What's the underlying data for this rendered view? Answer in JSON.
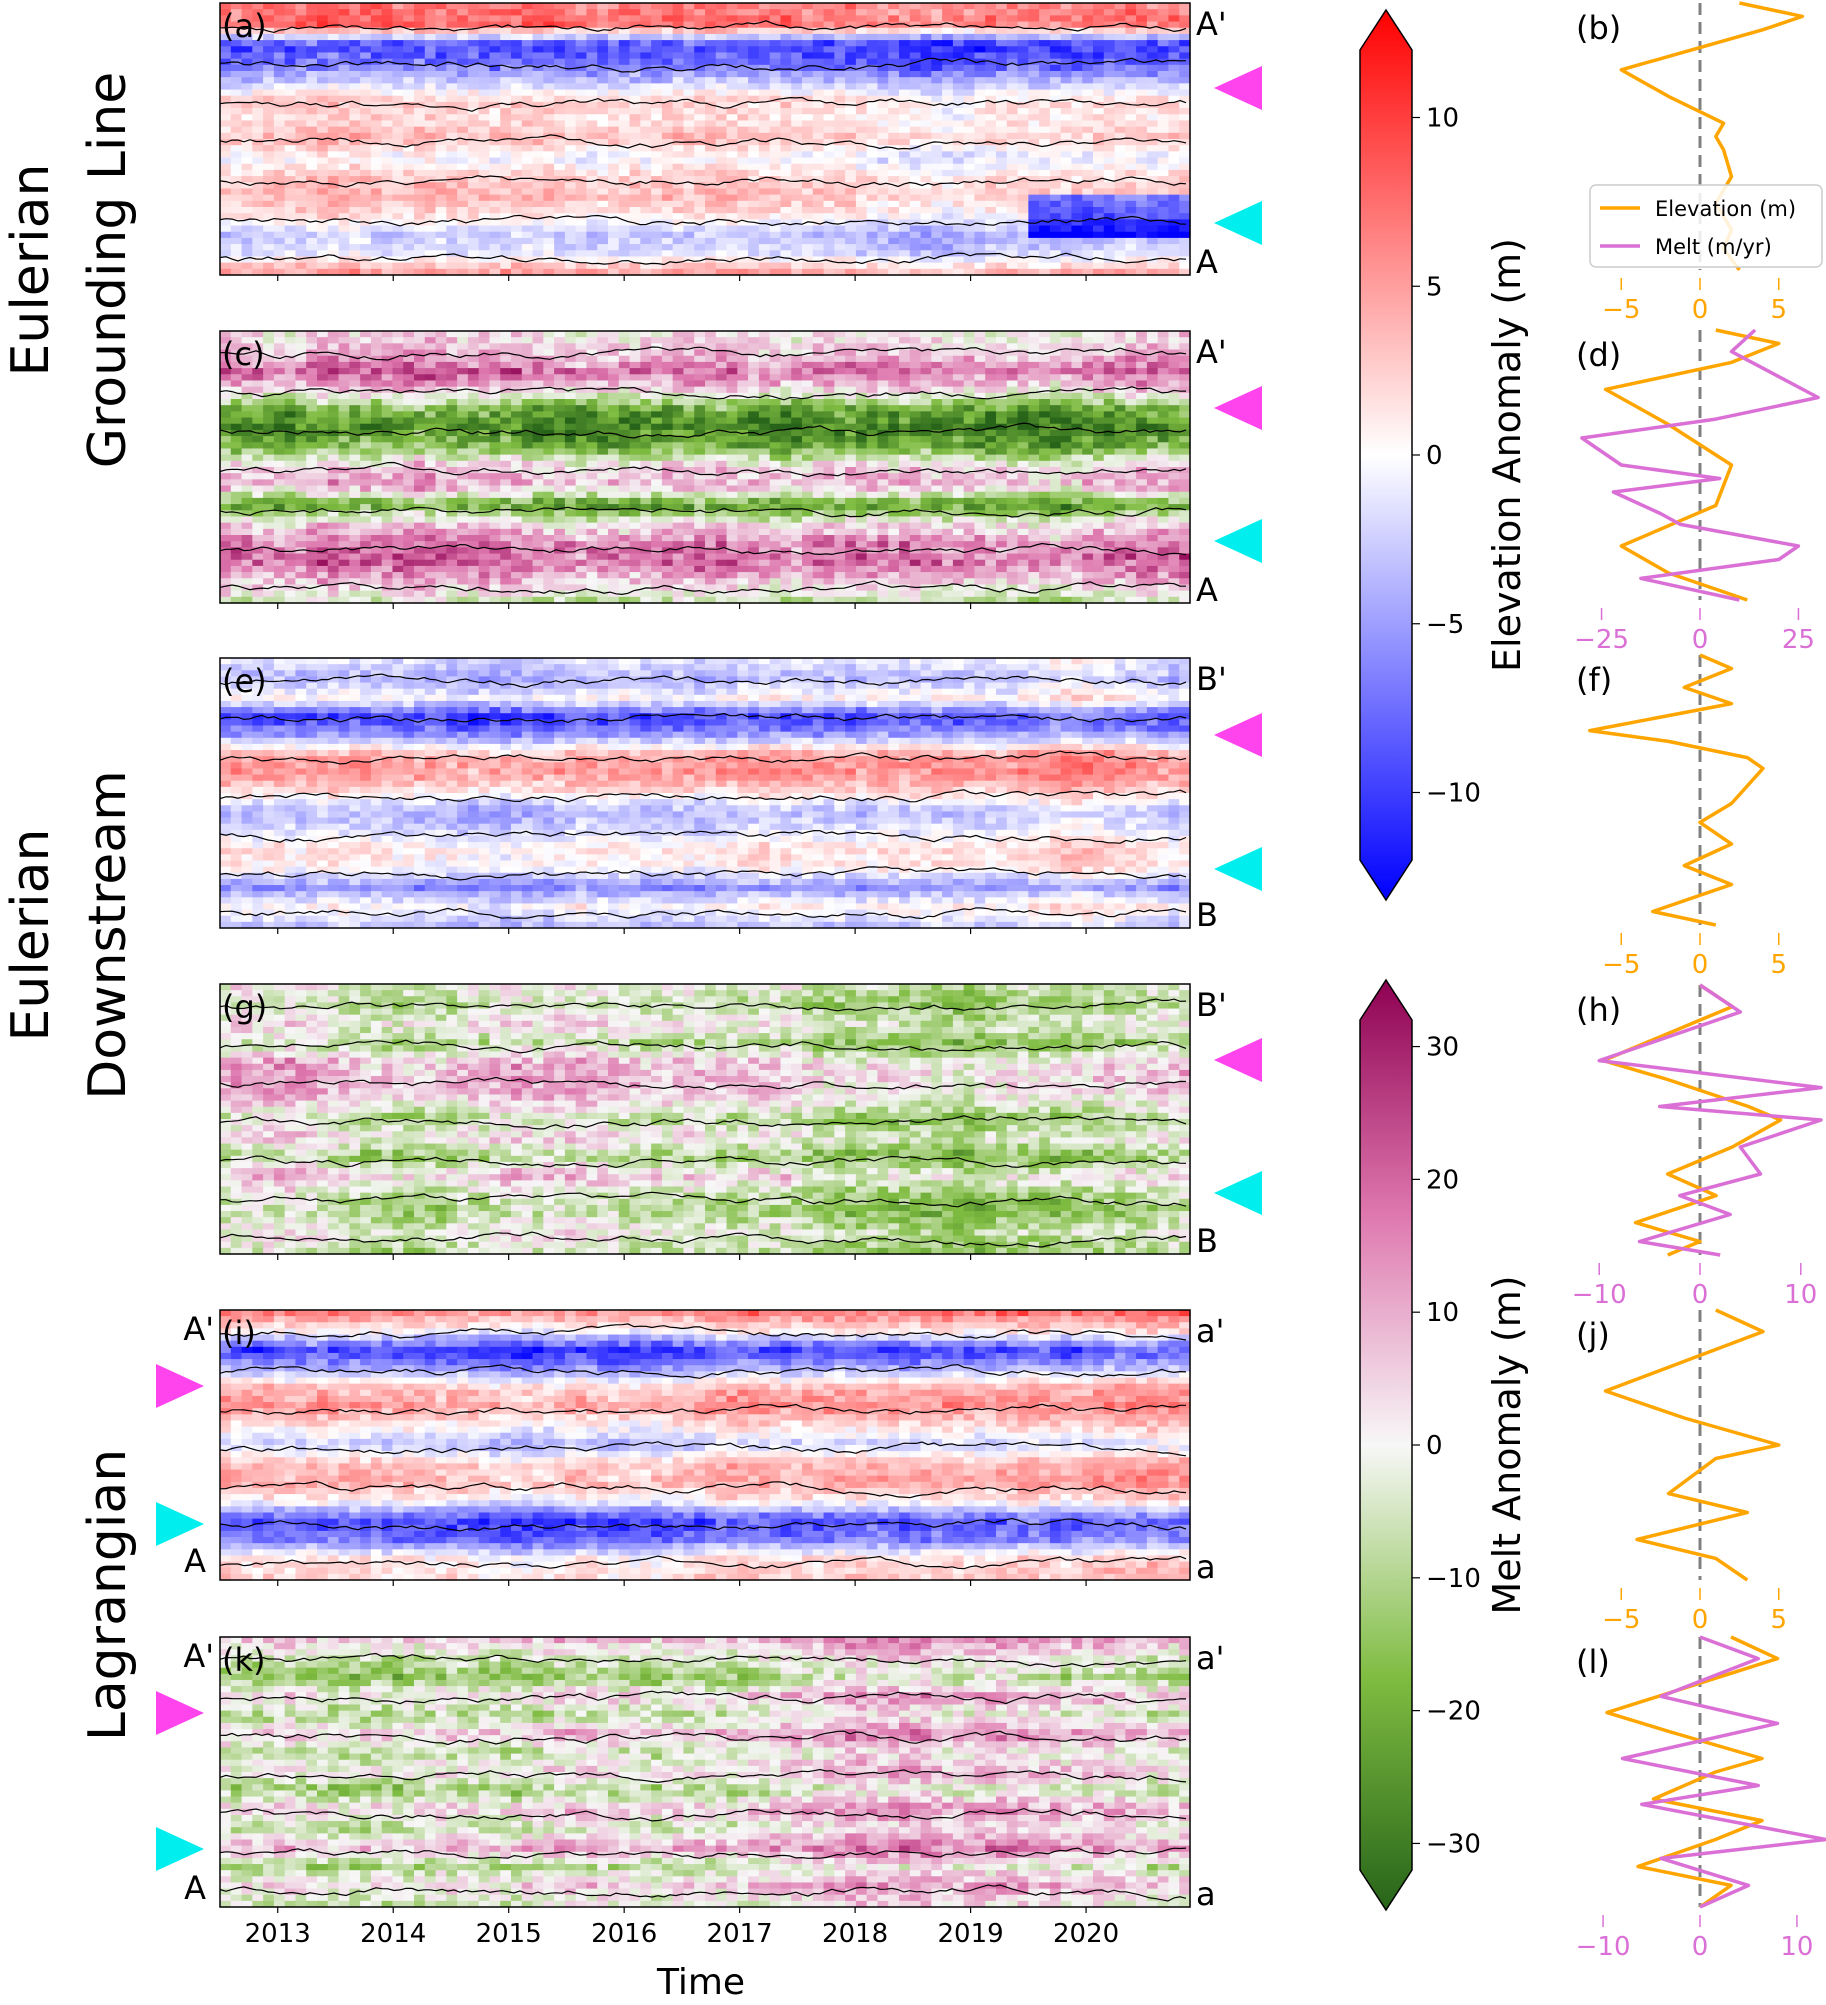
{
  "colors": {
    "elevation_line": "#ffa500",
    "melt_line": "#da70d6",
    "marker_magenta": "#ff44ee",
    "marker_cyan": "#00eeee",
    "zero_line": "#808080"
  },
  "figure": {
    "group_labels": {
      "grounding_line": [
        "Eulerian",
        "Grounding Line"
      ],
      "downstream": [
        "Eulerian",
        "Downstream"
      ],
      "lagrangian": [
        "Lagrangian"
      ]
    },
    "xlabel": "Time",
    "legend": {
      "elevation": "Elevation (m)",
      "melt": "Melt (m/yr)"
    }
  },
  "chart_data": [
    {
      "type": "heatmap",
      "panel": "(a)",
      "variable": "elevation anomaly",
      "colormap": "bwr",
      "x_range": [
        2012.5,
        2020.9
      ],
      "xticks": [
        2013,
        2014,
        2015,
        2016,
        2017,
        2018,
        2019,
        2020
      ],
      "top_label": "A'",
      "bottom_label": "A",
      "markers": [
        "magenta",
        "cyan"
      ],
      "profile": [
        6,
        7,
        -9,
        -8,
        -3,
        2,
        1,
        3,
        -1,
        2,
        3,
        1,
        -3,
        -2,
        4
      ],
      "event_2019_6": true
    },
    {
      "type": "heatmap",
      "panel": "(c)",
      "variable": "melt anomaly",
      "colormap": "PiYG",
      "x_range": [
        2012.5,
        2020.9
      ],
      "top_label": "A'",
      "bottom_label": "A",
      "markers": [
        "magenta",
        "cyan"
      ],
      "profile": [
        5,
        10,
        22,
        6,
        -18,
        -25,
        -15,
        8,
        12,
        -20,
        6,
        18,
        22,
        10,
        -2
      ]
    },
    {
      "type": "heatmap",
      "panel": "(e)",
      "variable": "elevation anomaly",
      "colormap": "bwr",
      "x_range": [
        2012.5,
        2020.9
      ],
      "top_label": "B'",
      "bottom_label": "B",
      "markers": [
        "magenta",
        "cyan"
      ],
      "profile": [
        -1,
        -3,
        1,
        -9,
        -4,
        5,
        6,
        2,
        -3,
        -1,
        2,
        1,
        -5,
        1,
        -2
      ]
    },
    {
      "type": "heatmap",
      "panel": "(g)",
      "variable": "melt anomaly",
      "colormap": "PiYG",
      "x_range": [
        2012.5,
        2020.9
      ],
      "top_label": "B'",
      "bottom_label": "B",
      "markers": [
        "magenta",
        "cyan"
      ],
      "profile": [
        2,
        -4,
        5,
        -6,
        10,
        12,
        8,
        -5,
        6,
        -8,
        9,
        -3,
        -6,
        2,
        -4
      ]
    },
    {
      "type": "heatmap",
      "panel": "(i)",
      "variable": "elevation anomaly",
      "colormap": "bwr",
      "x_range": [
        2012.5,
        2020.9
      ],
      "top_label": "a'",
      "bottom_label": "a",
      "left_top_label": "A'",
      "left_bottom_label": "A",
      "markers": [
        "magenta",
        "cyan"
      ],
      "profile": [
        7,
        1,
        -9,
        -3,
        4,
        6,
        2,
        -2,
        4,
        5,
        1,
        -8,
        -6,
        2,
        3
      ]
    },
    {
      "type": "heatmap",
      "panel": "(k)",
      "variable": "melt anomaly",
      "colormap": "PiYG",
      "x_range": [
        2012.5,
        2020.9
      ],
      "top_label": "a'",
      "bottom_label": "a",
      "left_top_label": "A'",
      "left_bottom_label": "A",
      "markers": [
        "magenta",
        "cyan"
      ],
      "profile": [
        8,
        -4,
        -12,
        6,
        -8,
        10,
        -6,
        4,
        -10,
        8,
        -5,
        12,
        -8,
        6,
        -3
      ]
    },
    {
      "type": "colorbar",
      "colormap": "bwr",
      "ylabel": "Elevation Anomaly (m)",
      "ylim": [
        -12,
        12
      ],
      "ticks": [
        10,
        5,
        0,
        -5,
        -10
      ],
      "tick_labels": [
        "10",
        "5",
        "0",
        "−5",
        "−10"
      ],
      "extend": "both"
    },
    {
      "type": "colorbar",
      "colormap": "PiYG",
      "ylabel": "Melt Anomaly (m)",
      "ylim": [
        -32,
        32
      ],
      "ticks": [
        30,
        20,
        10,
        0,
        -10,
        -20,
        -30
      ],
      "tick_labels": [
        "30",
        "20",
        "10",
        "0",
        "−10",
        "−20",
        "−30"
      ],
      "extend": "both"
    },
    {
      "type": "line",
      "panel": "(b)",
      "xlim": [
        -8,
        8
      ],
      "xticks": [
        -5,
        0,
        5
      ],
      "xtick_labels": [
        "−5",
        "0",
        "5"
      ],
      "tick_axis": "elevation",
      "series": [
        {
          "name": "Elevation (m)",
          "kind": "elevation",
          "points": [
            [
              2.5,
              0
            ],
            [
              6.5,
              0.05
            ],
            [
              4,
              0.1
            ],
            [
              -5,
              0.25
            ],
            [
              -2,
              0.35
            ],
            [
              1.5,
              0.45
            ],
            [
              1,
              0.5
            ],
            [
              1.5,
              0.55
            ],
            [
              2,
              0.65
            ],
            [
              1,
              0.75
            ],
            [
              2,
              0.85
            ],
            [
              1.5,
              0.92
            ],
            [
              2.5,
              1.0
            ]
          ]
        }
      ]
    },
    {
      "type": "line",
      "panel": "(d)",
      "xlim": [
        -32,
        32
      ],
      "xticks": [
        -25,
        0,
        25
      ],
      "xtick_labels": [
        "−25",
        "0",
        "25"
      ],
      "tick_axis": "melt",
      "series": [
        {
          "name": "Elevation (m)",
          "kind": "elevation",
          "scale": 4,
          "points": [
            [
              1,
              0
            ],
            [
              5,
              0.05
            ],
            [
              2,
              0.12
            ],
            [
              -6,
              0.22
            ],
            [
              -2,
              0.35
            ],
            [
              2,
              0.5
            ],
            [
              1,
              0.65
            ],
            [
              -5,
              0.8
            ],
            [
              -2,
              0.9
            ],
            [
              3,
              1.0
            ]
          ]
        },
        {
          "name": "Melt (m/yr)",
          "kind": "melt",
          "points": [
            [
              14,
              0
            ],
            [
              8,
              0.08
            ],
            [
              30,
              0.25
            ],
            [
              4,
              0.33
            ],
            [
              -30,
              0.4
            ],
            [
              -20,
              0.5
            ],
            [
              5,
              0.55
            ],
            [
              -22,
              0.6
            ],
            [
              -10,
              0.68
            ],
            [
              -5,
              0.72
            ],
            [
              25,
              0.8
            ],
            [
              20,
              0.85
            ],
            [
              -15,
              0.92
            ],
            [
              10,
              1.0
            ]
          ]
        }
      ]
    },
    {
      "type": "line",
      "panel": "(f)",
      "xlim": [
        -8,
        8
      ],
      "xticks": [
        -5,
        0,
        5
      ],
      "xtick_labels": [
        "−5",
        "0",
        "5"
      ],
      "tick_axis": "elevation",
      "series": [
        {
          "name": "Elevation (m)",
          "kind": "elevation",
          "points": [
            [
              0,
              0
            ],
            [
              2,
              0.05
            ],
            [
              -1,
              0.12
            ],
            [
              2,
              0.18
            ],
            [
              -7,
              0.28
            ],
            [
              -2,
              0.32
            ],
            [
              3,
              0.38
            ],
            [
              4,
              0.42
            ],
            [
              2,
              0.55
            ],
            [
              0,
              0.62
            ],
            [
              2,
              0.7
            ],
            [
              -1,
              0.78
            ],
            [
              2,
              0.85
            ],
            [
              -3,
              0.95
            ],
            [
              1,
              1.0
            ]
          ]
        }
      ]
    },
    {
      "type": "line",
      "panel": "(h)",
      "xlim": [
        -12.5,
        12.5
      ],
      "xticks": [
        -10,
        0,
        10
      ],
      "xtick_labels": [
        "−10",
        "0",
        "10"
      ],
      "tick_axis": "melt",
      "series": [
        {
          "name": "Elevation (m)",
          "kind": "elevation",
          "scale": 1.6,
          "points": [
            [
              0,
              0
            ],
            [
              2,
              0.08
            ],
            [
              -6,
              0.28
            ],
            [
              -2,
              0.35
            ],
            [
              3,
              0.45
            ],
            [
              5,
              0.5
            ],
            [
              2,
              0.6
            ],
            [
              -2,
              0.7
            ],
            [
              1,
              0.78
            ],
            [
              -4,
              0.88
            ],
            [
              0,
              0.95
            ],
            [
              -2,
              1.0
            ]
          ]
        },
        {
          "name": "Melt (m/yr)",
          "kind": "melt",
          "points": [
            [
              0,
              0
            ],
            [
              4,
              0.1
            ],
            [
              -10,
              0.28
            ],
            [
              12,
              0.38
            ],
            [
              -4,
              0.45
            ],
            [
              12,
              0.5
            ],
            [
              4,
              0.6
            ],
            [
              6,
              0.7
            ],
            [
              -2,
              0.78
            ],
            [
              3,
              0.85
            ],
            [
              -6,
              0.95
            ],
            [
              2,
              1.0
            ]
          ]
        }
      ]
    },
    {
      "type": "line",
      "panel": "(j)",
      "xlim": [
        -8,
        8
      ],
      "xticks": [
        -5,
        0,
        5
      ],
      "xtick_labels": [
        "−5",
        "0",
        "5"
      ],
      "tick_axis": "elevation",
      "series": [
        {
          "name": "Elevation (m)",
          "kind": "elevation",
          "points": [
            [
              1,
              0
            ],
            [
              4,
              0.08
            ],
            [
              -6,
              0.3
            ],
            [
              -1,
              0.4
            ],
            [
              5,
              0.5
            ],
            [
              1,
              0.55
            ],
            [
              -2,
              0.68
            ],
            [
              3,
              0.75
            ],
            [
              -4,
              0.85
            ],
            [
              1,
              0.92
            ],
            [
              3,
              1.0
            ]
          ]
        }
      ]
    },
    {
      "type": "line",
      "panel": "(l)",
      "xlim": [
        -13,
        13
      ],
      "xticks": [
        -10,
        0,
        10
      ],
      "xtick_labels": [
        "−10",
        "0",
        "10"
      ],
      "tick_axis": "melt",
      "series": [
        {
          "name": "Elevation (m)",
          "kind": "elevation",
          "scale": 1.6,
          "points": [
            [
              2,
              0
            ],
            [
              5,
              0.08
            ],
            [
              -6,
              0.28
            ],
            [
              -2,
              0.35
            ],
            [
              4,
              0.45
            ],
            [
              1,
              0.5
            ],
            [
              -3,
              0.6
            ],
            [
              4,
              0.68
            ],
            [
              1,
              0.75
            ],
            [
              -4,
              0.85
            ],
            [
              2,
              0.92
            ],
            [
              0,
              1.0
            ]
          ]
        },
        {
          "name": "Melt (m/yr)",
          "kind": "melt",
          "points": [
            [
              0,
              0
            ],
            [
              6,
              0.08
            ],
            [
              -4,
              0.22
            ],
            [
              8,
              0.32
            ],
            [
              -8,
              0.45
            ],
            [
              6,
              0.55
            ],
            [
              -6,
              0.62
            ],
            [
              13,
              0.75
            ],
            [
              -4,
              0.82
            ],
            [
              5,
              0.92
            ],
            [
              0,
              1.0
            ]
          ]
        }
      ]
    }
  ]
}
